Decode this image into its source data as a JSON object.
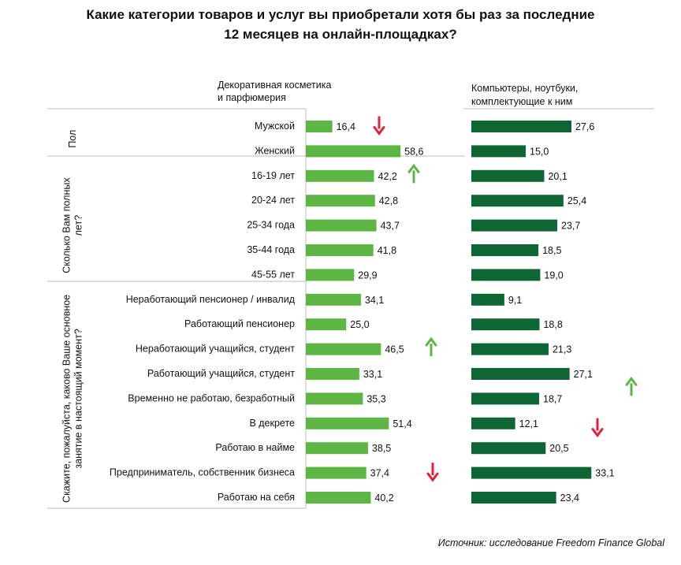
{
  "chart_data": {
    "type": "bar",
    "title": [
      "Какие категории товаров и услуг вы приобретали хотя бы раз за последние",
      "12 месяцев на онлайн-площадках?"
    ],
    "source": "Источник: исследование Freedom Finance Global",
    "groups": [
      {
        "label": [
          "Пол"
        ],
        "rows": [
          0,
          1
        ]
      },
      {
        "label": [
          "Сколько Вам полных",
          "лет?"
        ],
        "rows": [
          2,
          6
        ]
      },
      {
        "label": [
          "Скажите, пожалуйста, каково Ваше основное",
          "занятие в настоящий момент?"
        ],
        "rows": [
          7,
          15
        ]
      }
    ],
    "categories": [
      "Мужской",
      "Женский",
      "16-19 лет",
      "20-24 лет",
      "25-34 года",
      "35-44 года",
      "45-55 лет",
      "Неработающий пенсионер / инвалид",
      "Работающий пенсионер",
      "Неработающий учащийся, студент",
      "Работающий учащийся, студент",
      "Временно не работаю, безработный",
      "В декрете",
      "Работаю в найме",
      "Предприниматель, собственник бизнеса",
      "Работаю на себя"
    ],
    "series": [
      {
        "name": [
          "Декоративная косметика",
          "и парфюмерия"
        ],
        "color": "#5db544",
        "values": [
          16.4,
          58.6,
          42.2,
          42.8,
          43.7,
          41.8,
          29.9,
          34.1,
          25.0,
          46.5,
          33.1,
          35.3,
          51.4,
          38.5,
          37.4,
          40.2
        ],
        "labels": [
          "16,4",
          "58,6",
          "42,2",
          "42,8",
          "43,7",
          "41,8",
          "29,9",
          "34,1",
          "25,0",
          "46,5",
          "33,1",
          "35,3",
          "51,4",
          "38,5",
          "37,4",
          "40,2"
        ],
        "markers": [
          {
            "row": 0,
            "dir": "down"
          },
          {
            "row": 2,
            "dir": "up"
          },
          {
            "row": 9,
            "dir": "up"
          },
          {
            "row": 14,
            "dir": "down"
          }
        ]
      },
      {
        "name": [
          "Компьютеры, ноутбуки,",
          "комплектующие к ним"
        ],
        "color": "#0e6634",
        "values": [
          27.6,
          15.0,
          20.1,
          25.4,
          23.7,
          18.5,
          19.0,
          9.1,
          18.8,
          21.3,
          27.1,
          18.7,
          12.1,
          20.5,
          33.1,
          23.4
        ],
        "labels": [
          "27,6",
          "15,0",
          "20,1",
          "25,4",
          "23,7",
          "18,5",
          "19,0",
          "9,1",
          "18,8",
          "21,3",
          "27,1",
          "18,7",
          "12,1",
          "20,5",
          "33,1",
          "23,4"
        ],
        "markers": [
          {
            "row": 10.6,
            "dir": "up"
          },
          {
            "row": 12.2,
            "dir": "down"
          }
        ]
      }
    ],
    "arrow_colors": {
      "up": "#5db544",
      "down": "#e0213c"
    }
  }
}
